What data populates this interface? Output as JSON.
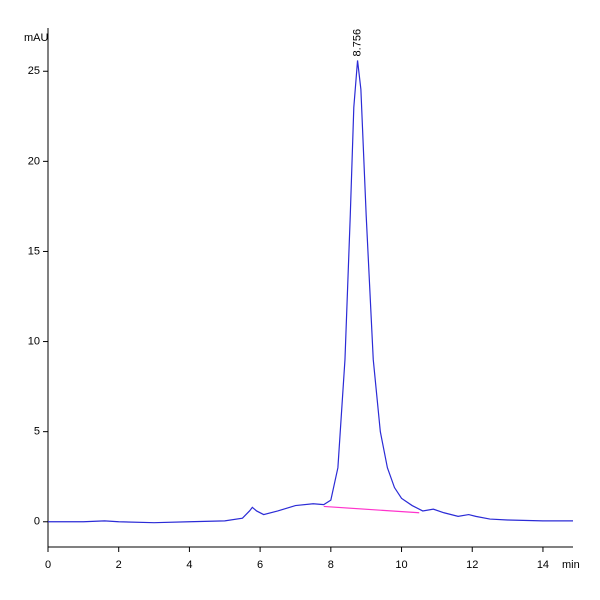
{
  "chart_data": {
    "type": "line",
    "x_label": "min",
    "y_label": "mAU",
    "xlim": [
      0,
      14.85
    ],
    "ylim": [
      -1.4,
      27.4
    ],
    "xticks": [
      0,
      2,
      4,
      6,
      8,
      10,
      12,
      14
    ],
    "yticks": [
      0,
      5,
      10,
      15,
      20,
      25
    ],
    "series": [
      {
        "name": "signal",
        "color": "#2b2bd6",
        "x": [
          0,
          1,
          1.6,
          2,
          3,
          4,
          5,
          5.5,
          5.7,
          5.78,
          5.9,
          6.1,
          6.5,
          7,
          7.5,
          7.8,
          8.0,
          8.2,
          8.4,
          8.55,
          8.65,
          8.756,
          8.85,
          9.0,
          9.2,
          9.4,
          9.6,
          9.8,
          10.0,
          10.3,
          10.6,
          10.9,
          11.2,
          11.6,
          11.9,
          12.1,
          12.5,
          13,
          14,
          14.85
        ],
        "values": [
          0,
          0,
          0.05,
          0,
          -0.05,
          0,
          0.05,
          0.2,
          0.6,
          0.8,
          0.6,
          0.4,
          0.6,
          0.9,
          1.0,
          0.95,
          1.2,
          3,
          9,
          17,
          23,
          25.6,
          24,
          17,
          9,
          5,
          3,
          1.9,
          1.3,
          0.9,
          0.6,
          0.7,
          0.5,
          0.3,
          0.4,
          0.3,
          0.15,
          0.1,
          0.05,
          0.05
        ]
      }
    ],
    "baseline": {
      "color": "#ff33cc",
      "x": [
        7.8,
        10.5
      ],
      "values": [
        0.85,
        0.5
      ]
    },
    "annotations": [
      {
        "text": "8.756",
        "x": 8.756,
        "y": 25.6
      }
    ]
  }
}
